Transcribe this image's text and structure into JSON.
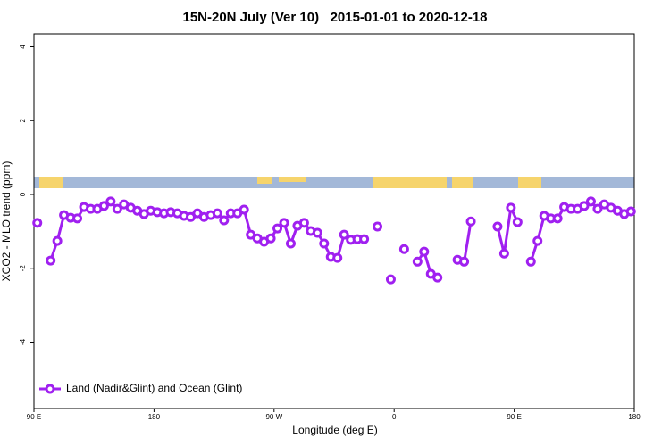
{
  "chart_data": {
    "type": "line",
    "title": "15N-20N July (Ver 10)   2015-01-01 to 2020-12-18",
    "xlabel": "Longitude (deg E)",
    "ylabel": "XCO2 - MLO trend (ppm)",
    "xlim": [
      90,
      540
    ],
    "ylim": [
      -5.8,
      4.35
    ],
    "xticks": [
      {
        "value": 90,
        "label": "90 E"
      },
      180,
      {
        "value": 270,
        "label": "90 W"
      },
      {
        "value": 360,
        "label": "0"
      },
      {
        "value": 450,
        "label": "90 E"
      },
      {
        "value": 540,
        "label": "180"
      }
    ],
    "yticks": [
      -4,
      -2,
      0,
      2,
      4
    ],
    "legend": "bottomleft",
    "x": [
      92.5,
      97.5,
      102.5,
      107.5,
      112.5,
      117.5,
      122.5,
      127.5,
      132.5,
      137.5,
      142.5,
      147.5,
      152.5,
      157.5,
      162.5,
      167.5,
      172.5,
      177.5,
      182.5,
      187.5,
      192.5,
      197.5,
      202.5,
      207.5,
      212.5,
      217.5,
      222.5,
      227.5,
      232.5,
      237.5,
      242.5,
      247.5,
      252.5,
      257.5,
      262.5,
      267.5,
      272.5,
      277.5,
      282.5,
      287.5,
      292.5,
      297.5,
      302.5,
      307.5,
      312.5,
      317.5,
      322.5,
      327.5,
      332.5,
      337.5,
      342.5,
      347.5,
      352.5,
      357.5,
      362.5,
      367.5,
      372.5,
      377.5,
      382.5,
      387.5,
      392.5,
      397.5,
      402.5,
      407.5,
      412.5,
      417.5,
      422.5,
      427.5,
      432.5,
      437.5,
      442.5,
      447.5,
      452.5,
      457.5,
      462.5,
      467.5,
      472.5,
      477.5,
      482.5,
      487.5,
      492.5,
      497.5,
      502.5,
      507.5,
      512.5,
      517.5,
      522.5,
      527.5,
      532.5,
      537.5
    ],
    "series": [
      {
        "name": "Land (Nadir&Glint) and Ocean (Glint)",
        "color": "#a020f0",
        "values": [
          -0.77,
          null,
          -1.79,
          -1.26,
          -0.56,
          -0.63,
          -0.65,
          -0.34,
          -0.39,
          -0.39,
          -0.31,
          -0.19,
          -0.39,
          -0.27,
          -0.36,
          -0.44,
          -0.53,
          -0.44,
          -0.48,
          -0.51,
          -0.48,
          -0.51,
          -0.58,
          -0.61,
          -0.51,
          -0.61,
          -0.56,
          -0.51,
          -0.7,
          -0.51,
          -0.51,
          -0.41,
          -1.09,
          -1.19,
          -1.28,
          -1.19,
          -0.92,
          -0.77,
          -1.33,
          -0.85,
          -0.77,
          -0.99,
          -1.04,
          -1.33,
          -1.69,
          -1.72,
          -1.09,
          -1.23,
          -1.21,
          -1.21,
          null,
          -0.87,
          null,
          -2.3,
          null,
          -1.48,
          null,
          -1.82,
          -1.55,
          -2.15,
          -2.25,
          null,
          null,
          -1.77,
          -1.82,
          -0.73,
          null,
          null,
          null,
          -0.87,
          -1.6,
          -0.36,
          -0.75,
          null,
          -1.82,
          -1.26,
          -0.58,
          -0.65,
          -0.65,
          -0.34,
          -0.39,
          -0.39,
          -0.31,
          -0.19,
          -0.39,
          -0.27,
          -0.36,
          -0.44,
          -0.53,
          -0.46
        ]
      }
    ]
  }
}
